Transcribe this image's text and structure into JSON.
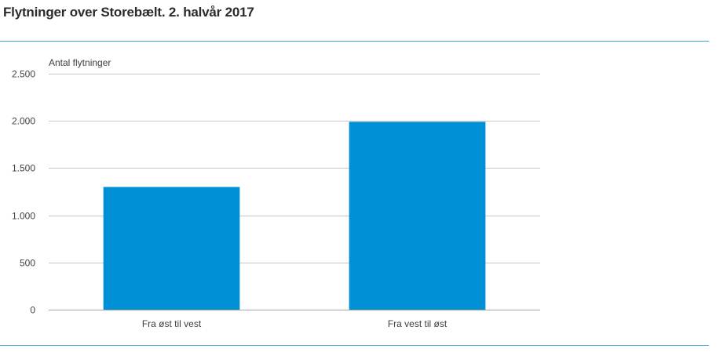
{
  "title": "Flytninger over Storebælt. 2. halvår 2017",
  "chart_data": {
    "type": "bar",
    "ylabel": "Antal flytninger",
    "xlabel": "",
    "categories": [
      "Fra øst til vest",
      "Fra vest til øst"
    ],
    "values": [
      1300,
      1990
    ],
    "ylim": [
      0,
      2500
    ],
    "yticks": [
      0,
      500,
      1000,
      1500,
      2000,
      2500
    ],
    "ytick_labels": [
      "0",
      "500",
      "1.000",
      "1.500",
      "2.000",
      "2.500"
    ],
    "grid": true,
    "legend": "none",
    "bar_color": "#0090d6",
    "grid_color": "#c8c8c8"
  }
}
